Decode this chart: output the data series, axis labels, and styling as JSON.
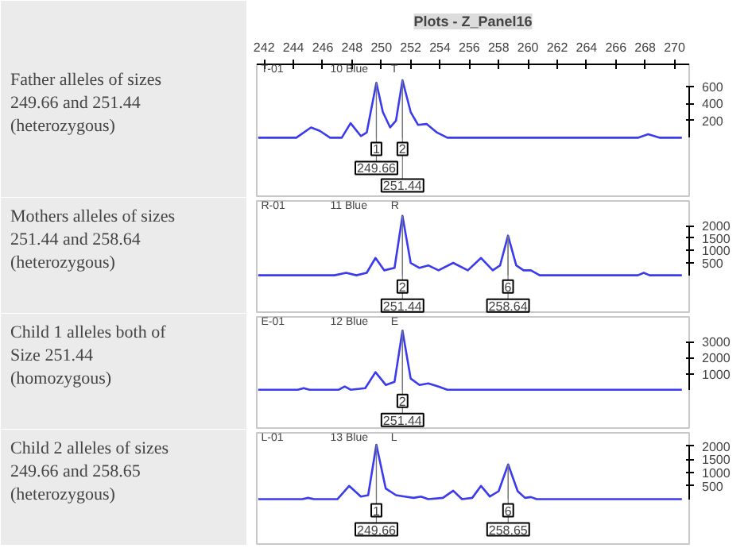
{
  "chart_data": [
    {
      "type": "line",
      "title": "Plots - Z_Panel16",
      "xlim": [
        241.5,
        271
      ],
      "xticks": [
        242,
        244,
        246,
        248,
        250,
        252,
        254,
        256,
        258,
        260,
        262,
        264,
        266,
        268,
        270
      ],
      "ylim": [
        -700,
        856
      ],
      "yticks": [
        200,
        400,
        600
      ],
      "color": "#3a3aee",
      "x": [
        241.6,
        243.5,
        244.2,
        245.2,
        245.8,
        246.5,
        247.3,
        247.9,
        248.6,
        249.0,
        249.66,
        250.1,
        250.6,
        251.0,
        251.44,
        252.0,
        252.5,
        253.1,
        253.8,
        254.5,
        255.5,
        258,
        262.3,
        263,
        267.5,
        268.2,
        269,
        270.5
      ],
      "values": [
        0,
        0,
        0,
        120,
        80,
        0,
        0,
        170,
        20,
        60,
        640,
        300,
        120,
        200,
        670,
        300,
        150,
        160,
        60,
        0,
        0,
        0,
        0,
        0,
        0,
        40,
        0,
        0
      ],
      "annotations": [
        "Father alleles of sizes\n249.66 and 251.44\n(heterozygous)",
        "T-01",
        "10 Blue",
        "T",
        {
          "text": "1",
          "x": 249.66,
          "y": 640
        },
        {
          "text": "249.66",
          "x": 249.66,
          "y": 640
        },
        {
          "text": "2",
          "x": 251.44,
          "y": 670
        },
        {
          "text": "251.44",
          "x": 251.44,
          "y": 670
        }
      ]
    },
    {
      "type": "line",
      "xlim": [
        241.5,
        271
      ],
      "ylim": [
        -1550,
        3000
      ],
      "yticks": [
        500,
        1000,
        1500,
        2000
      ],
      "tick_labels": "y",
      "color": "#3a3aee",
      "x": [
        241.6,
        246.8,
        247.6,
        248.3,
        249.0,
        249.6,
        250.2,
        250.9,
        251.44,
        252.0,
        252.6,
        253.2,
        253.9,
        254.9,
        255.9,
        256.8,
        257.6,
        258.1,
        258.64,
        259.2,
        259.7,
        260.2,
        260.8,
        267.5,
        267.9,
        268.3,
        270.5
      ],
      "values": [
        0,
        0,
        100,
        0,
        100,
        700,
        200,
        300,
        2400,
        500,
        300,
        400,
        200,
        500,
        200,
        700,
        200,
        400,
        1600,
        400,
        200,
        200,
        0,
        0,
        100,
        0,
        0
      ],
      "annotations": [
        "Mothers alleles of sizes\n251.44 and 258.64\n(heterozygous)",
        "R-01",
        "11 Blue",
        "R",
        {
          "text": "2",
          "x": 251.44,
          "y": 2400
        },
        {
          "text": "251.44",
          "x": 251.44,
          "y": 2400
        },
        {
          "text": "6",
          "x": 258.64,
          "y": 1600
        },
        {
          "text": "258.64",
          "x": 258.64,
          "y": 1600
        }
      ]
    },
    {
      "type": "line",
      "xlim": [
        241.5,
        271
      ],
      "ylim": [
        -2500,
        4560
      ],
      "yticks": [
        1000,
        2000,
        3000
      ],
      "tick_labels": "y",
      "color": "#3a3aee",
      "x": [
        241.6,
        244.3,
        244.7,
        245.1,
        247.1,
        247.5,
        247.9,
        248.9,
        249.6,
        250.3,
        250.9,
        251.44,
        252.0,
        252.6,
        253.2,
        253.9,
        254.5,
        255.5,
        270.5
      ],
      "values": [
        0,
        0,
        100,
        0,
        0,
        200,
        0,
        100,
        1100,
        300,
        500,
        3700,
        700,
        300,
        400,
        200,
        0,
        0,
        0
      ],
      "annotations": [
        "Child 1 alleles both of\nSize 251.44\n(homozygous)",
        "E-01",
        "12 Blue",
        "E",
        {
          "text": "2",
          "x": 251.44,
          "y": 3700
        },
        {
          "text": "251.44",
          "x": 251.44,
          "y": 3700
        }
      ]
    },
    {
      "type": "line",
      "xlim": [
        241.5,
        271
      ],
      "ylim": [
        -1750,
        2500
      ],
      "yticks": [
        500,
        1000,
        1500,
        2000
      ],
      "tick_labels": "y",
      "color": "#3a3aee",
      "x": [
        241.6,
        244.6,
        245.0,
        245.4,
        247.0,
        247.8,
        248.6,
        249.1,
        249.66,
        250.3,
        251.0,
        251.6,
        252.2,
        252.7,
        253.2,
        254.2,
        254.9,
        255.5,
        256.2,
        256.8,
        257.4,
        258.0,
        258.65,
        259.3,
        259.8,
        260.2,
        260.6,
        270.5
      ],
      "values": [
        0,
        0,
        50,
        0,
        0,
        500,
        100,
        150,
        2050,
        400,
        150,
        100,
        50,
        100,
        0,
        50,
        320,
        0,
        50,
        500,
        100,
        300,
        1310,
        300,
        50,
        80,
        0,
        0
      ],
      "annotations": [
        "Child 2 alleles of sizes\n249.66 and 258.65\n(heterozygous)",
        "L-01",
        "13 Blue",
        "L",
        {
          "text": "1",
          "x": 249.66,
          "y": 2050
        },
        {
          "text": "249.66",
          "x": 249.66,
          "y": 2050
        },
        {
          "text": "6",
          "x": 258.65,
          "y": 1310
        },
        {
          "text": "258.65",
          "x": 258.65,
          "y": 1310
        }
      ]
    }
  ]
}
